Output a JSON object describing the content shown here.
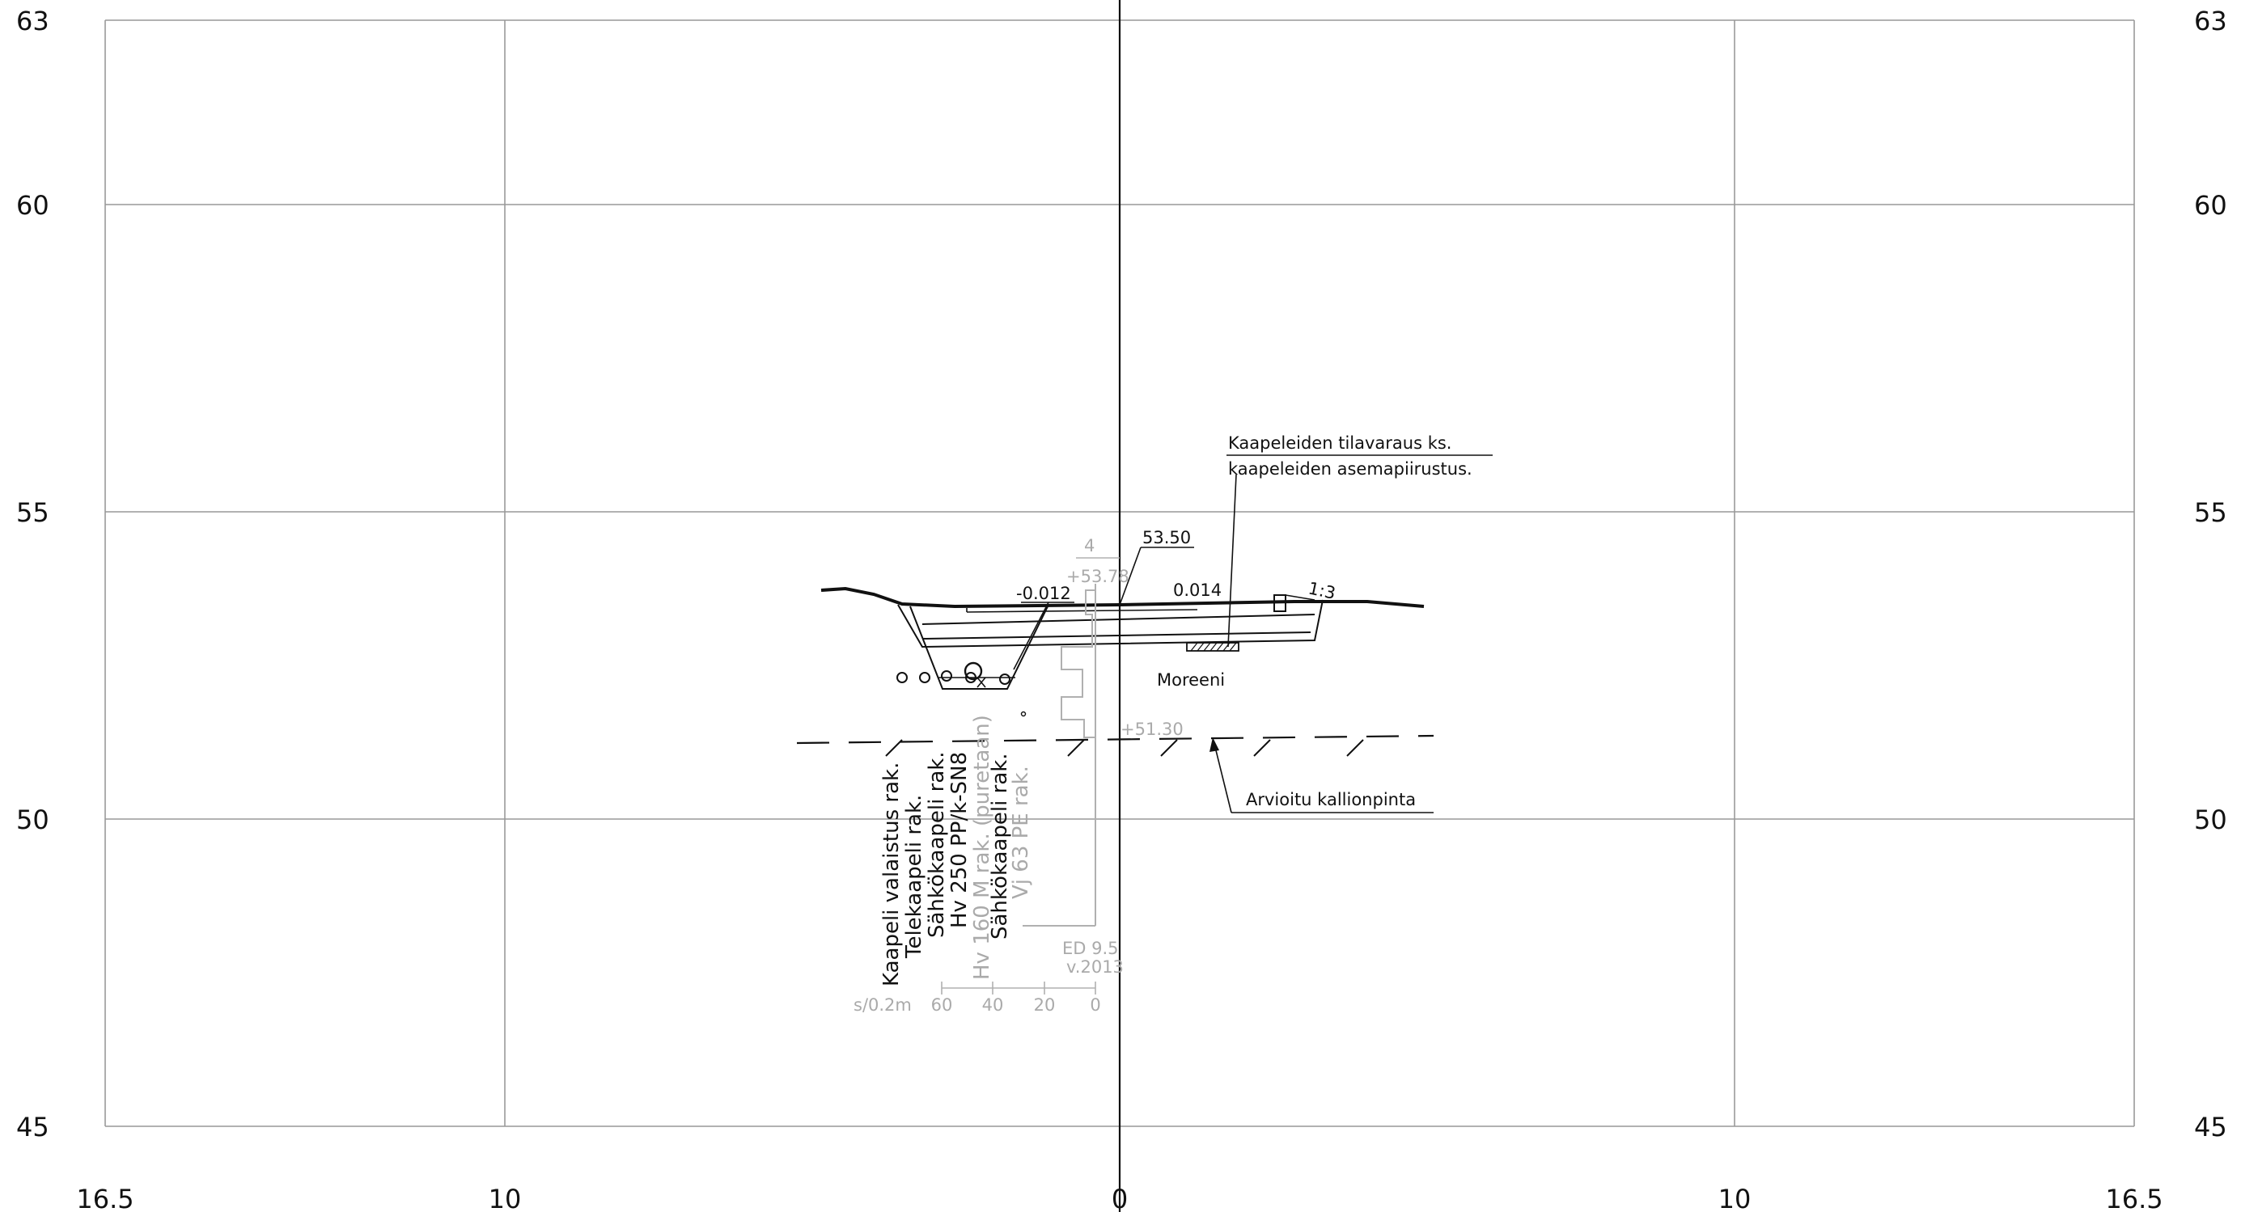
{
  "axes": {
    "y_ticks": [
      "63",
      "60",
      "55",
      "50",
      "45"
    ],
    "x_ticks": [
      "16.5",
      "10",
      "0",
      "10",
      "16.5"
    ]
  },
  "elevations": {
    "top": "53.50",
    "ground_center": "+53.78",
    "rock_estimate": "+51.30",
    "slope_left": "-0.012",
    "slope_right": "0.014",
    "side_slope": "1:3",
    "top_tick": "4"
  },
  "notes": {
    "cable_reservation_line1": "Kaapeleiden tilavaraus ks.",
    "cable_reservation_line2": "kaapeleiden asemapiirustus.",
    "soil": "Moreeni",
    "rock_surface": "Arvioitu kallionpinta"
  },
  "utilities": [
    "Kaapeli valaistus rak.",
    "Telekaapeli rak.",
    "Sähkökaapeli rak.",
    "Hv 250 PP/k-SN8",
    "Hv 160 M rak. (puretaan)",
    "Sähkökaapeli rak.",
    "Vj 63 PE rak."
  ],
  "sounding": {
    "id": "ED 9.5",
    "year": "v.2013",
    "scale_label": "s/0.2m",
    "scale_ticks": [
      "60",
      "40",
      "20",
      "0"
    ]
  }
}
